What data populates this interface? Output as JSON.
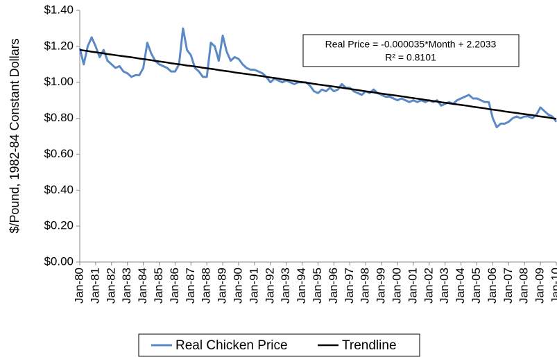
{
  "chart_data": {
    "type": "line",
    "ylabel": "$/Pound, 1982-84 Constant Dollars",
    "annotation": [
      "Real Price = -0.000035*Month + 2.2033",
      "R² = 0.8101"
    ],
    "categories": [
      "Jan-80",
      null,
      null,
      null,
      "Jan-81",
      null,
      null,
      null,
      "Jan-82",
      null,
      null,
      null,
      "Jan-83",
      null,
      null,
      null,
      "Jan-84",
      null,
      null,
      null,
      "Jan-85",
      null,
      null,
      null,
      "Jan-86",
      null,
      null,
      null,
      "Jan-87",
      null,
      null,
      null,
      "Jan-88",
      null,
      null,
      null,
      "Jan-89",
      null,
      null,
      null,
      "Jan-90",
      null,
      null,
      null,
      "Jan-91",
      null,
      null,
      null,
      "Jan-92",
      null,
      null,
      null,
      "Jan-93",
      null,
      null,
      null,
      "Jan-94",
      null,
      null,
      null,
      "Jan-95",
      null,
      null,
      null,
      "Jan-96",
      null,
      null,
      null,
      "Jan-97",
      null,
      null,
      null,
      "Jan-98",
      null,
      null,
      null,
      "Jan-99",
      null,
      null,
      null,
      "Jan-00",
      null,
      null,
      null,
      "Jan-01",
      null,
      null,
      null,
      "Jan-02",
      null,
      null,
      null,
      "Jan-03",
      null,
      null,
      null,
      "Jan-04",
      null,
      null,
      null,
      "Jan-05",
      null,
      null,
      null,
      "Jan-06",
      null,
      null,
      null,
      "Jan-07",
      null,
      null,
      null,
      "Jan-08",
      null,
      null,
      null,
      "Jan-09",
      null,
      null,
      null,
      "Jan-10"
    ],
    "series": [
      {
        "name": "Real Chicken Price",
        "color": "#5a89c6",
        "width": 3,
        "values": [
          1.19,
          1.1,
          1.2,
          1.25,
          1.2,
          1.14,
          1.18,
          1.12,
          1.1,
          1.08,
          1.09,
          1.06,
          1.05,
          1.03,
          1.04,
          1.04,
          1.08,
          1.22,
          1.16,
          1.12,
          1.1,
          1.09,
          1.08,
          1.06,
          1.06,
          1.1,
          1.3,
          1.18,
          1.15,
          1.08,
          1.06,
          1.03,
          1.03,
          1.22,
          1.2,
          1.12,
          1.26,
          1.17,
          1.12,
          1.14,
          1.13,
          1.1,
          1.08,
          1.07,
          1.07,
          1.06,
          1.05,
          1.03,
          1.0,
          1.02,
          1.01,
          1.0,
          1.01,
          1.0,
          0.99,
          1.0,
          1.0,
          1.0,
          0.98,
          0.95,
          0.94,
          0.96,
          0.95,
          0.97,
          0.95,
          0.96,
          0.99,
          0.97,
          0.97,
          0.95,
          0.94,
          0.93,
          0.95,
          0.94,
          0.96,
          0.94,
          0.93,
          0.92,
          0.92,
          0.91,
          0.9,
          0.91,
          0.9,
          0.89,
          0.9,
          0.89,
          0.9,
          0.89,
          0.9,
          0.89,
          0.9,
          0.87,
          0.88,
          0.89,
          0.88,
          0.9,
          0.91,
          0.92,
          0.93,
          0.91,
          0.91,
          0.9,
          0.89,
          0.89,
          0.8,
          0.75,
          0.77,
          0.77,
          0.78,
          0.8,
          0.81,
          0.8,
          0.81,
          0.81,
          0.8,
          0.82,
          0.86,
          0.84,
          0.82,
          0.81,
          0.78
        ]
      },
      {
        "name": "Trendline",
        "color": "#000000",
        "width": 2.5,
        "values": [
          1.18,
          1.177,
          1.174,
          1.17,
          1.167,
          1.164,
          1.161,
          1.157,
          1.154,
          1.151,
          1.148,
          1.145,
          1.142,
          1.139,
          1.136,
          1.132,
          1.129,
          1.126,
          1.123,
          1.119,
          1.116,
          1.113,
          1.11,
          1.106,
          1.103,
          1.1,
          1.097,
          1.093,
          1.091,
          1.088,
          1.085,
          1.081,
          1.078,
          1.075,
          1.072,
          1.068,
          1.065,
          1.062,
          1.059,
          1.055,
          1.052,
          1.049,
          1.046,
          1.043,
          1.04,
          1.037,
          1.034,
          1.03,
          1.027,
          1.024,
          1.021,
          1.017,
          1.014,
          1.011,
          1.008,
          1.004,
          1.001,
          0.998,
          0.995,
          0.991,
          0.988,
          0.985,
          0.982,
          0.979,
          0.976,
          0.973,
          0.97,
          0.966,
          0.963,
          0.96,
          0.957,
          0.953,
          0.95,
          0.947,
          0.944,
          0.94,
          0.937,
          0.934,
          0.931,
          0.928,
          0.925,
          0.922,
          0.919,
          0.915,
          0.912,
          0.909,
          0.906,
          0.902,
          0.899,
          0.896,
          0.893,
          0.889,
          0.886,
          0.883,
          0.88,
          0.877,
          0.874,
          0.871,
          0.868,
          0.864,
          0.861,
          0.858,
          0.855,
          0.851,
          0.848,
          0.845,
          0.842,
          0.838,
          0.835,
          0.832,
          0.829,
          0.826,
          0.823,
          0.82,
          0.817,
          0.813,
          0.81,
          0.807,
          0.804,
          0.8,
          0.797
        ]
      }
    ],
    "ylim": [
      0,
      1.4
    ],
    "yticks": [
      {
        "value": 0,
        "label": "$0.00"
      },
      {
        "value": 0.2,
        "label": "$0.20"
      },
      {
        "value": 0.4,
        "label": "$0.40"
      },
      {
        "value": 0.6,
        "label": "$0.60"
      },
      {
        "value": 0.8,
        "label": "$0.80"
      },
      {
        "value": 1.0,
        "label": "$1.00"
      },
      {
        "value": 1.2,
        "label": "$1.20"
      },
      {
        "value": 1.4,
        "label": "$1.40"
      }
    ],
    "legend": "bottom"
  }
}
